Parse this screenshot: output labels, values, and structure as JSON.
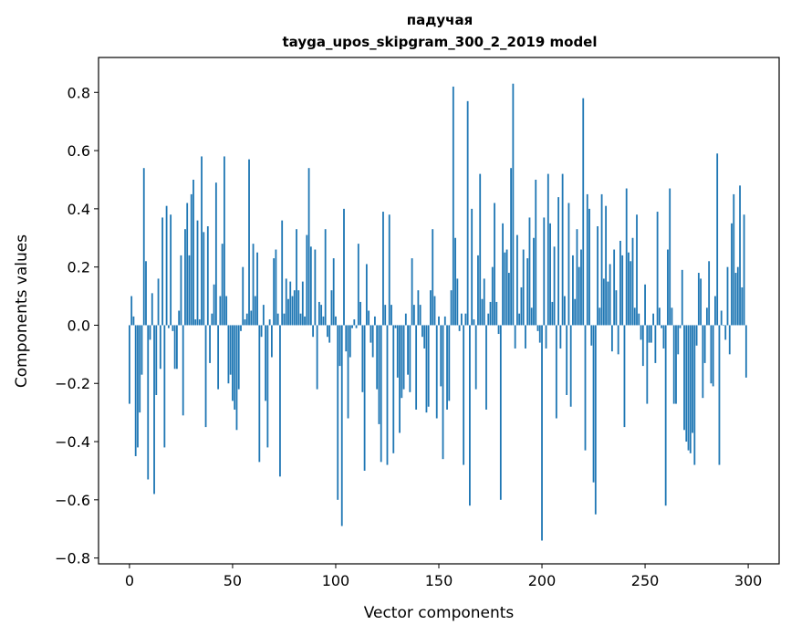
{
  "chart_data": {
    "type": "bar",
    "title": "падучая",
    "subtitle": "tayga_upos_skipgram_300_2_2019 model",
    "xlabel": "Vector components",
    "ylabel": "Components values",
    "xlim": [
      -15,
      315
    ],
    "ylim": [
      -0.82,
      0.92
    ],
    "xticks": [
      0,
      50,
      100,
      150,
      200,
      250,
      300
    ],
    "yticks": [
      -0.8,
      -0.6,
      -0.4,
      -0.2,
      0.0,
      0.2,
      0.4,
      0.6,
      0.8
    ],
    "ytick_labels": [
      "−0.8",
      "−0.6",
      "−0.4",
      "−0.2",
      "0.0",
      "0.2",
      "0.4",
      "0.6",
      "0.8"
    ],
    "bar_color": "#1f77b4",
    "grid": false,
    "x_start": 0,
    "values": [
      -0.27,
      0.1,
      0.03,
      -0.45,
      -0.42,
      -0.3,
      -0.17,
      0.54,
      0.22,
      -0.53,
      -0.05,
      0.11,
      -0.58,
      -0.24,
      0.16,
      -0.15,
      0.37,
      -0.42,
      0.41,
      -0.01,
      0.38,
      -0.02,
      -0.15,
      -0.15,
      0.05,
      0.24,
      -0.31,
      0.33,
      0.42,
      0.24,
      0.45,
      0.5,
      0.02,
      0.36,
      0.02,
      0.58,
      0.32,
      -0.35,
      0.34,
      -0.13,
      0.04,
      0.14,
      0.49,
      -0.22,
      0.1,
      0.28,
      0.58,
      0.1,
      -0.2,
      -0.17,
      -0.26,
      -0.29,
      -0.36,
      -0.22,
      -0.02,
      0.2,
      0.02,
      0.04,
      0.57,
      0.05,
      0.28,
      0.1,
      0.25,
      -0.47,
      -0.04,
      0.07,
      -0.26,
      -0.42,
      0.02,
      -0.11,
      0.23,
      0.26,
      0.04,
      -0.52,
      0.36,
      0.04,
      0.16,
      0.09,
      0.15,
      0.1,
      0.12,
      0.33,
      0.12,
      0.04,
      0.15,
      0.03,
      0.31,
      0.54,
      0.27,
      -0.04,
      0.26,
      -0.22,
      0.08,
      0.07,
      0.03,
      0.33,
      -0.04,
      -0.06,
      0.12,
      0.23,
      0.03,
      -0.6,
      -0.14,
      -0.69,
      0.4,
      -0.09,
      -0.32,
      -0.11,
      -0.01,
      0.02,
      -0.01,
      0.28,
      0.08,
      -0.23,
      -0.5,
      0.21,
      0.05,
      -0.06,
      -0.11,
      0.03,
      -0.22,
      -0.34,
      -0.47,
      0.39,
      0.07,
      -0.48,
      0.38,
      0.07,
      -0.44,
      -0.01,
      -0.18,
      -0.37,
      -0.25,
      -0.22,
      0.04,
      -0.17,
      -0.23,
      0.23,
      0.07,
      -0.29,
      0.12,
      0.07,
      -0.04,
      -0.08,
      -0.3,
      -0.28,
      0.12,
      0.33,
      0.1,
      -0.32,
      0.03,
      -0.21,
      -0.46,
      0.03,
      -0.29,
      -0.26,
      0.12,
      0.82,
      0.3,
      0.16,
      -0.02,
      0.04,
      -0.48,
      0.04,
      0.77,
      -0.62,
      0.4,
      0.02,
      -0.22,
      0.24,
      0.52,
      0.09,
      0.16,
      -0.29,
      0.04,
      0.08,
      0.2,
      0.42,
      0.08,
      -0.03,
      -0.6,
      0.35,
      0.25,
      0.26,
      0.18,
      0.54,
      0.83,
      -0.08,
      0.31,
      0.04,
      0.13,
      0.26,
      -0.08,
      0.23,
      0.37,
      0.06,
      0.3,
      0.5,
      -0.02,
      -0.06,
      -0.74,
      0.37,
      -0.08,
      0.52,
      0.35,
      0.08,
      0.27,
      -0.32,
      0.44,
      -0.08,
      0.52,
      0.1,
      -0.24,
      0.42,
      -0.28,
      0.24,
      0.09,
      0.33,
      0.2,
      0.26,
      0.78,
      -0.43,
      0.45,
      0.4,
      -0.07,
      -0.54,
      -0.65,
      0.34,
      0.06,
      0.45,
      0.16,
      0.41,
      0.15,
      0.21,
      -0.09,
      0.26,
      0.12,
      -0.1,
      0.29,
      0.24,
      -0.35,
      0.47,
      0.25,
      0.22,
      0.3,
      0.06,
      0.38,
      0.04,
      -0.05,
      -0.14,
      0.14,
      -0.27,
      -0.06,
      -0.06,
      0.04,
      -0.13,
      0.39,
      0.06,
      -0.01,
      -0.08,
      -0.62,
      0.26,
      0.47,
      0.06,
      -0.27,
      -0.27,
      -0.1,
      -0.01,
      0.19,
      -0.36,
      -0.4,
      -0.43,
      -0.44,
      -0.37,
      -0.48,
      -0.07,
      0.18,
      0.16,
      -0.25,
      -0.13,
      0.06,
      0.22,
      -0.2,
      -0.21,
      0.1,
      0.59,
      -0.48,
      0.05,
      0.0,
      -0.05,
      0.2,
      -0.1,
      0.35,
      0.45,
      0.18,
      0.2,
      0.48,
      0.13,
      0.38,
      -0.18
    ]
  }
}
